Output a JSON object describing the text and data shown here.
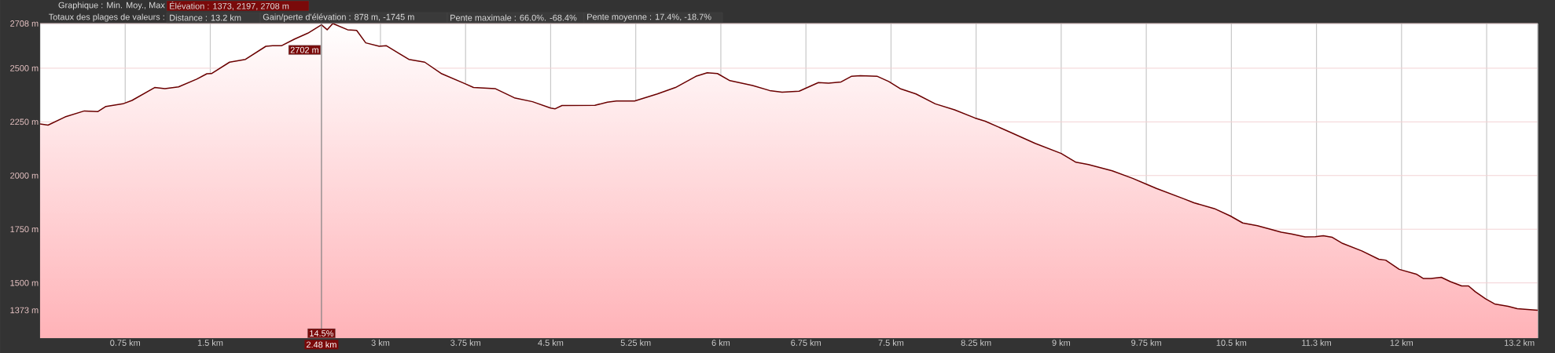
{
  "chart_data": {
    "type": "area",
    "annotations": [
      "Graphique : Min. Moy., Max",
      "Élévation : 1373, 2197, 2708 m",
      "Totaux des plages de valeurs :",
      "Distance : 13.2 km",
      "Gain/perte d'élévation : 878 m, -1745 m",
      "Pente maximale : 66.0%. -68.4%",
      "Pente moyenne : 17.4%, -18.7%",
      {
        "text": "2702 m",
        "x": 2.48,
        "y": 2702
      },
      {
        "text": "14.5%",
        "x": 2.48
      }
    ],
    "ref_lines": [
      {
        "axis": "x",
        "value": 2.48,
        "label": "2.48 km"
      }
    ],
    "xlim": [
      0,
      13.2
    ],
    "ylim": [
      1243,
      2708
    ],
    "xticks": [
      {
        "value": 0.75,
        "label": "0.75 km"
      },
      {
        "value": 1.5,
        "label": "1.5 km"
      },
      {
        "value": 3,
        "label": "3 km"
      },
      {
        "value": 3.75,
        "label": "3.75 km"
      },
      {
        "value": 4.5,
        "label": "4.5 km"
      },
      {
        "value": 5.25,
        "label": "5.25 km"
      },
      {
        "value": 6,
        "label": "6 km"
      },
      {
        "value": 6.75,
        "label": "6.75 km"
      },
      {
        "value": 7.5,
        "label": "7.5 km"
      },
      {
        "value": 8.25,
        "label": "8.25 km"
      },
      {
        "value": 9,
        "label": "9 km"
      },
      {
        "value": 9.75,
        "label": "9.75 km"
      },
      {
        "value": 10.5,
        "label": "10.5 km"
      },
      {
        "value": 11.25,
        "label": "11.3 km"
      },
      {
        "value": 12,
        "label": "12 km"
      },
      {
        "value": 12.75,
        "label": null
      },
      {
        "value": 13.2,
        "label": "13.2 km"
      }
    ],
    "yticks": [
      {
        "value": 1373,
        "label": "1373 m"
      },
      {
        "value": 1500,
        "label": "1500 m"
      },
      {
        "value": 1750,
        "label": "1750 m"
      },
      {
        "value": 2000,
        "label": "2000 m"
      },
      {
        "value": 2250,
        "label": "2250 m"
      },
      {
        "value": 2500,
        "label": "2500 m"
      },
      {
        "value": 2708,
        "label": "2708 m"
      }
    ],
    "grid": true,
    "series": [
      {
        "color": "#6b0000",
        "x": [
          0,
          0.07,
          0.22,
          0.39,
          0.51,
          0.58,
          0.73,
          0.81,
          1.01,
          1.1,
          1.22,
          1.38,
          1.47,
          1.51,
          1.67,
          1.81,
          1.99,
          2.05,
          2.13,
          2.24,
          2.36,
          2.48,
          2.53,
          2.58,
          2.71,
          2.79,
          2.87,
          2.99,
          3.05,
          3.25,
          3.39,
          3.54,
          3.74,
          3.82,
          4.01,
          4.18,
          4.34,
          4.5,
          4.54,
          4.6,
          4.89,
          5.0,
          5.08,
          5.24,
          5.44,
          5.6,
          5.78,
          5.88,
          5.97,
          6.08,
          6.28,
          6.43,
          6.54,
          6.69,
          6.86,
          6.95,
          7.06,
          7.15,
          7.23,
          7.38,
          7.48,
          7.58,
          7.72,
          7.89,
          8.06,
          8.24,
          8.33,
          8.55,
          8.77,
          9.0,
          9.13,
          9.24,
          9.45,
          9.63,
          9.75,
          9.84,
          10.08,
          10.17,
          10.35,
          10.49,
          10.6,
          10.73,
          10.94,
          11.03,
          11.15,
          11.24,
          11.31,
          11.39,
          11.48,
          11.65,
          11.8,
          11.86,
          11.98,
          12.13,
          12.19,
          12.26,
          12.35,
          12.43,
          12.53,
          12.59,
          12.65,
          12.74,
          12.82,
          12.94,
          13.02,
          13.2
        ],
        "values": [
          2240,
          2235,
          2273,
          2301,
          2298,
          2322,
          2334,
          2350,
          2410,
          2405,
          2413,
          2449,
          2474,
          2475,
          2528,
          2541,
          2602,
          2605,
          2605,
          2635,
          2663,
          2702,
          2679,
          2708,
          2679,
          2676,
          2618,
          2602,
          2605,
          2541,
          2528,
          2474,
          2429,
          2410,
          2405,
          2362,
          2344,
          2314,
          2311,
          2326,
          2327,
          2342,
          2347,
          2347,
          2380,
          2410,
          2462,
          2479,
          2475,
          2442,
          2419,
          2396,
          2388,
          2393,
          2433,
          2430,
          2436,
          2462,
          2465,
          2462,
          2438,
          2405,
          2380,
          2334,
          2306,
          2268,
          2253,
          2202,
          2150,
          2103,
          2062,
          2051,
          2022,
          1987,
          1960,
          1940,
          1892,
          1873,
          1846,
          1812,
          1779,
          1766,
          1736,
          1728,
          1714,
          1715,
          1720,
          1712,
          1684,
          1649,
          1610,
          1606,
          1563,
          1541,
          1521,
          1521,
          1526,
          1506,
          1486,
          1486,
          1459,
          1426,
          1402,
          1391,
          1380,
          1373
        ]
      }
    ]
  }
}
